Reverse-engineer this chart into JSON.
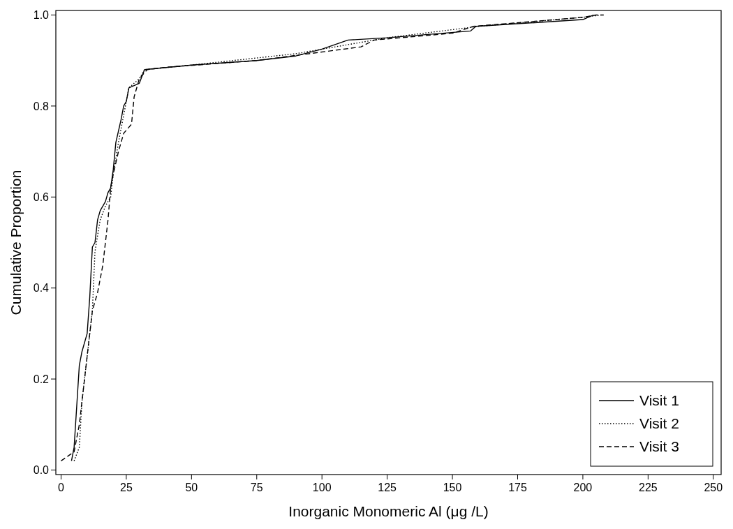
{
  "chart_data": {
    "type": "line",
    "xlabel": "Inorganic Monomeric Al (μg /L)",
    "ylabel": "Cumulative Proportion",
    "xlim": [
      -2,
      253
    ],
    "ylim": [
      -0.01,
      1.01
    ],
    "xticks": [
      0,
      25,
      50,
      75,
      100,
      125,
      150,
      175,
      200,
      225,
      250
    ],
    "yticks": [
      {
        "value": 0,
        "label": "0.0"
      },
      0.2,
      0.4,
      0.6,
      0.8,
      {
        "value": 1,
        "label": "1.0"
      }
    ],
    "legend": "bottom right",
    "grid": false,
    "series": [
      {
        "name": "Visit 1",
        "color": "#000000",
        "line_style": "solid",
        "x": [
          4,
          5,
          6,
          7,
          8,
          10,
          11,
          12,
          13,
          14,
          15,
          17,
          18,
          19,
          20,
          21,
          23,
          24,
          25,
          26,
          30,
          32,
          50,
          75,
          90,
          100,
          110,
          125,
          157,
          159,
          200,
          204
        ],
        "values": [
          0.02,
          0.05,
          0.14,
          0.23,
          0.26,
          0.3,
          0.38,
          0.49,
          0.5,
          0.55,
          0.57,
          0.59,
          0.61,
          0.62,
          0.66,
          0.72,
          0.77,
          0.8,
          0.81,
          0.84,
          0.85,
          0.88,
          0.89,
          0.9,
          0.91,
          0.925,
          0.945,
          0.95,
          0.965,
          0.975,
          0.99,
          1.0
        ]
      },
      {
        "name": "Visit 2",
        "color": "#000000",
        "line_style": "dotted",
        "x": [
          5,
          7,
          8,
          10,
          12,
          13,
          15,
          17,
          19,
          20,
          22,
          24,
          26,
          30,
          32,
          50,
          90,
          110,
          125,
          160,
          200,
          207
        ],
        "values": [
          0.02,
          0.05,
          0.15,
          0.25,
          0.35,
          0.48,
          0.55,
          0.58,
          0.6,
          0.65,
          0.72,
          0.78,
          0.84,
          0.86,
          0.88,
          0.89,
          0.915,
          0.935,
          0.95,
          0.975,
          0.995,
          1.0
        ]
      },
      {
        "name": "Visit 3",
        "color": "#000000",
        "line_style": "dashed",
        "x": [
          0,
          5,
          7,
          9,
          11,
          12,
          14,
          16,
          18,
          19,
          20,
          22,
          24,
          27,
          28,
          30,
          33,
          40,
          75,
          95,
          115,
          120,
          150,
          158,
          200,
          205,
          208
        ],
        "values": [
          0.02,
          0.04,
          0.1,
          0.2,
          0.3,
          0.35,
          0.39,
          0.45,
          0.55,
          0.62,
          0.65,
          0.7,
          0.74,
          0.76,
          0.82,
          0.86,
          0.88,
          0.885,
          0.9,
          0.915,
          0.93,
          0.945,
          0.96,
          0.975,
          0.995,
          1.0,
          1.0
        ]
      }
    ]
  }
}
